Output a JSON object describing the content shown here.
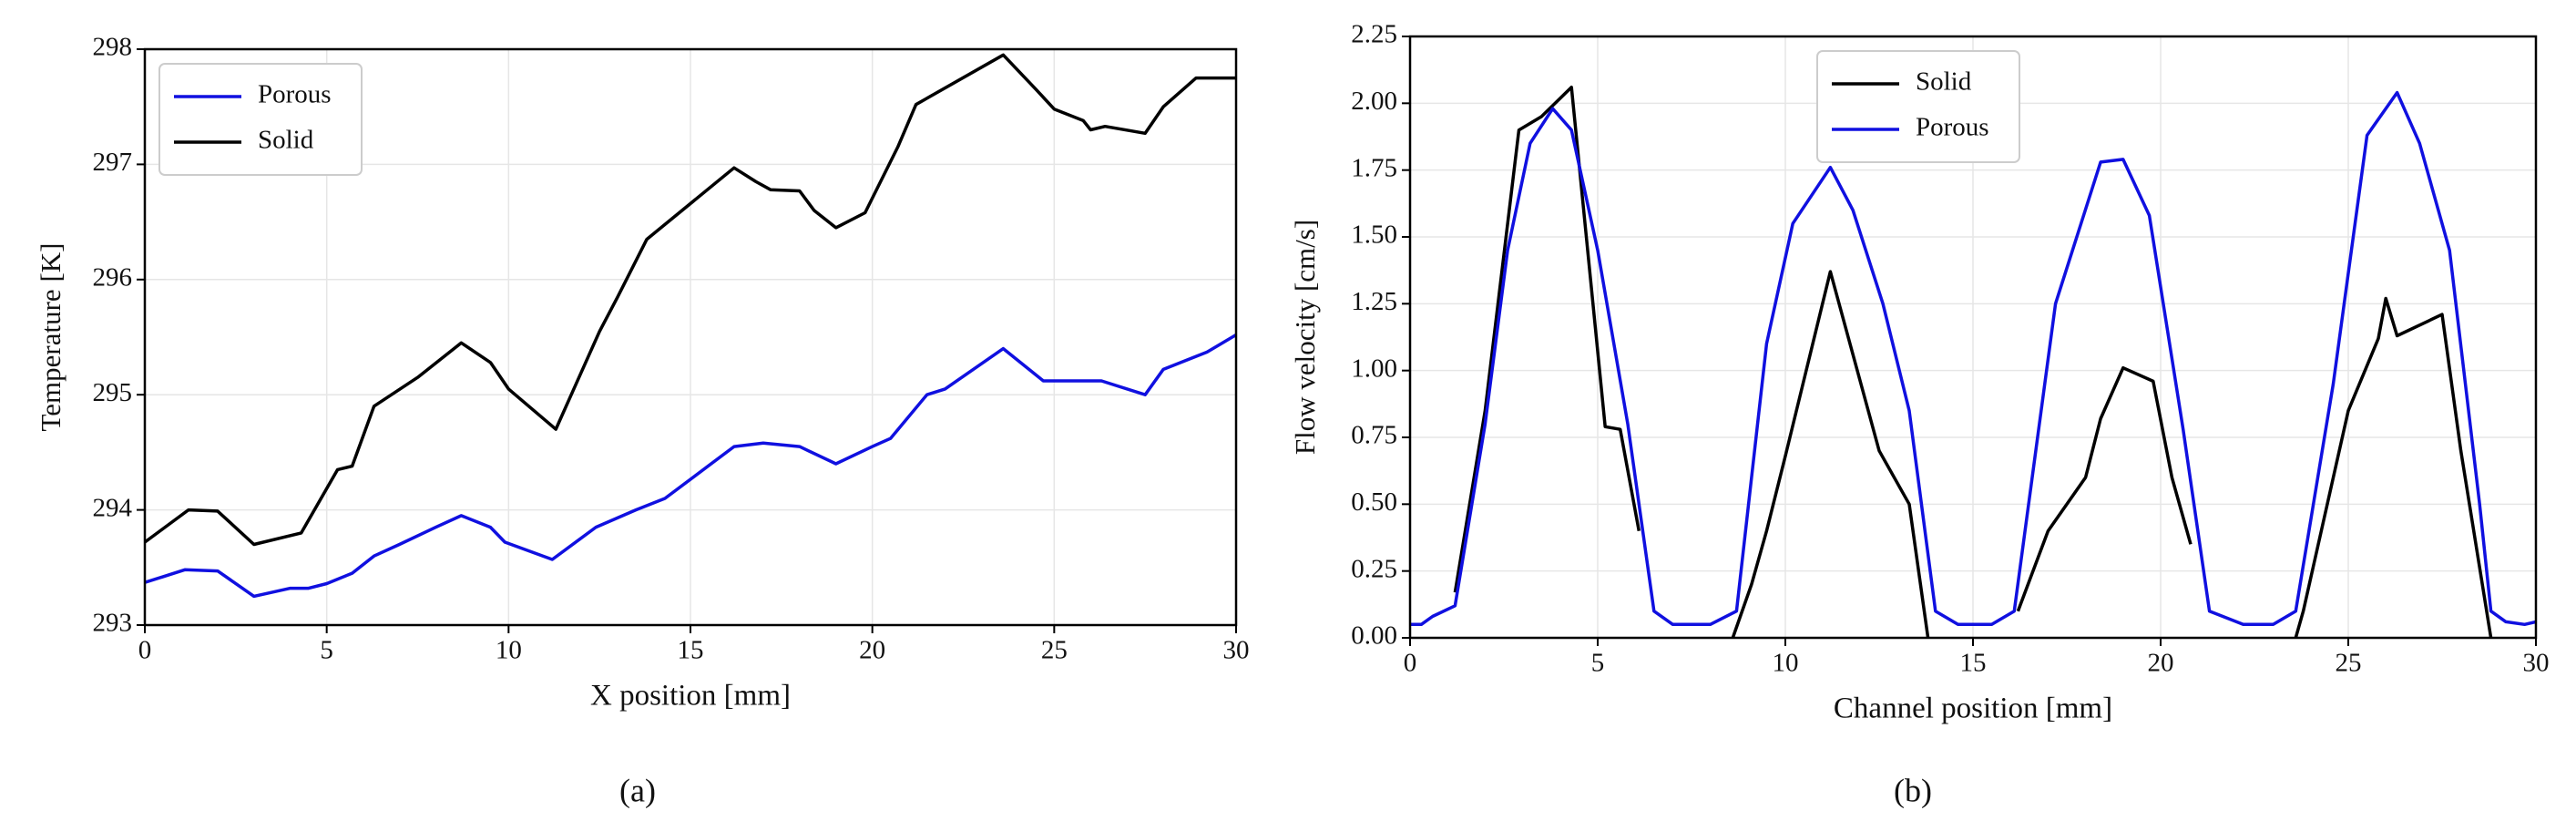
{
  "chart_data": [
    {
      "type": "line",
      "caption": "(a)",
      "xlabel": "X position [mm]",
      "ylabel": "Temperature [K]",
      "xlim": [
        0,
        30
      ],
      "ylim": [
        293,
        298
      ],
      "xticks": [
        0,
        5,
        10,
        15,
        20,
        25,
        30
      ],
      "yticks": [
        293,
        294,
        295,
        296,
        297,
        298
      ],
      "grid": true,
      "legend": "upper left",
      "series": [
        {
          "name": "Porous",
          "color": "#1010e0",
          "x": [
            0,
            0.5,
            1.1,
            2,
            3,
            4,
            4.5,
            5,
            5.7,
            6.3,
            7,
            8,
            8.7,
            9.5,
            9.9,
            11.2,
            12.4,
            13.5,
            14.3,
            16.2,
            17,
            18,
            19,
            20,
            20.5,
            21.5,
            22,
            23.6,
            24.7,
            25.5,
            26.3,
            27.5,
            28,
            29.2,
            30
          ],
          "values": [
            293.37,
            293.42,
            293.48,
            293.47,
            293.25,
            293.32,
            293.32,
            293.36,
            293.45,
            293.6,
            293.7,
            293.85,
            293.95,
            293.85,
            293.72,
            293.57,
            293.85,
            294.0,
            294.1,
            294.55,
            294.58,
            294.55,
            294.4,
            294.55,
            294.62,
            295.0,
            295.05,
            295.4,
            295.12,
            295.12,
            295.12,
            295.0,
            295.22,
            295.37,
            295.52
          ]
        },
        {
          "name": "Solid",
          "color": "#000000",
          "x": [
            0,
            1.2,
            2,
            3,
            4.3,
            5.3,
            5.7,
            6.3,
            7.5,
            8.7,
            9.5,
            10,
            11.3,
            12.5,
            13,
            13.8,
            16.2,
            16.8,
            17.2,
            18,
            18.4,
            19,
            19.8,
            20.7,
            21.2,
            23.6,
            24.5,
            25,
            25.8,
            26,
            26.4,
            27.5,
            28,
            28.9,
            30
          ],
          "values": [
            293.72,
            294.0,
            293.99,
            293.7,
            293.8,
            294.35,
            294.38,
            294.9,
            295.15,
            295.45,
            295.28,
            295.05,
            294.7,
            295.55,
            295.85,
            296.35,
            296.97,
            296.85,
            296.78,
            296.77,
            296.6,
            296.45,
            296.58,
            297.15,
            297.52,
            297.95,
            297.65,
            297.48,
            297.38,
            297.3,
            297.33,
            297.27,
            297.5,
            297.75,
            297.75
          ]
        }
      ]
    },
    {
      "type": "line",
      "caption": "(b)",
      "xlabel": "Channel position [mm]",
      "ylabel": "Flow velocity [cm/s]",
      "xlim": [
        0,
        30
      ],
      "ylim": [
        0,
        2.25
      ],
      "xticks": [
        0,
        5,
        10,
        15,
        20,
        25,
        30
      ],
      "yticks": [
        {
          "value": 0,
          "label": "0.00"
        },
        {
          "value": 0.25,
          "label": "0.25"
        },
        {
          "value": 0.5,
          "label": "0.50"
        },
        {
          "value": 0.75,
          "label": "0.75"
        },
        {
          "value": 1,
          "label": "1.00"
        },
        {
          "value": 1.25,
          "label": "1.25"
        },
        {
          "value": 1.5,
          "label": "1.50"
        },
        {
          "value": 1.75,
          "label": "1.75"
        },
        {
          "value": 2,
          "label": "2.00"
        },
        {
          "value": 2.25,
          "label": "2.25"
        }
      ],
      "grid": true,
      "legend": "upper center",
      "series": [
        {
          "name": "Solid",
          "color": "#000000",
          "x": [
            1.2,
            2,
            2.9,
            3.5,
            4.3,
            5.2,
            5.6,
            6.1,
            7,
            8.6,
            9.1,
            9.5,
            10,
            11.2,
            12.5,
            13.3,
            13.8,
            15,
            16.2,
            17,
            18,
            18.4,
            19,
            19.8,
            20.3,
            20.8,
            22,
            23.6,
            23.8,
            25,
            25.8,
            26,
            26.3,
            27.5,
            28,
            28.8
          ],
          "values": [
            0.17,
            0.85,
            1.9,
            1.95,
            2.06,
            0.79,
            0.78,
            0.4,
            null,
            0,
            0.2,
            0.4,
            0.68,
            1.37,
            0.7,
            0.5,
            0,
            null,
            0.1,
            0.4,
            0.6,
            0.82,
            1.01,
            0.96,
            0.6,
            0.35,
            null,
            0,
            0.1,
            0.85,
            1.12,
            1.27,
            1.13,
            1.21,
            0.7,
            0
          ]
        },
        {
          "name": "Porous",
          "color": "#1010e0",
          "x": [
            0,
            0.3,
            0.6,
            1.2,
            2,
            2.6,
            3.2,
            3.8,
            4.3,
            5,
            5.8,
            6.5,
            7,
            8,
            8.7,
            9.5,
            10.2,
            11.2,
            11.8,
            12.6,
            13.3,
            14,
            14.6,
            15.5,
            16.1,
            17.2,
            18.4,
            19,
            19.7,
            20.6,
            21.3,
            22.2,
            23,
            23.6,
            24.6,
            25.5,
            26.3,
            26.9,
            27.7,
            28.5,
            28.8,
            29.2,
            29.7,
            30
          ],
          "values": [
            0.05,
            0.05,
            0.08,
            0.12,
            0.8,
            1.45,
            1.85,
            1.98,
            1.9,
            1.45,
            0.8,
            0.1,
            0.05,
            0.05,
            0.1,
            1.1,
            1.55,
            1.76,
            1.6,
            1.25,
            0.85,
            0.1,
            0.05,
            0.05,
            0.1,
            1.25,
            1.78,
            1.79,
            1.58,
            0.78,
            0.1,
            0.05,
            0.05,
            0.1,
            0.95,
            1.88,
            2.04,
            1.85,
            1.45,
            0.5,
            0.1,
            0.06,
            0.05,
            0.06
          ]
        }
      ]
    }
  ]
}
